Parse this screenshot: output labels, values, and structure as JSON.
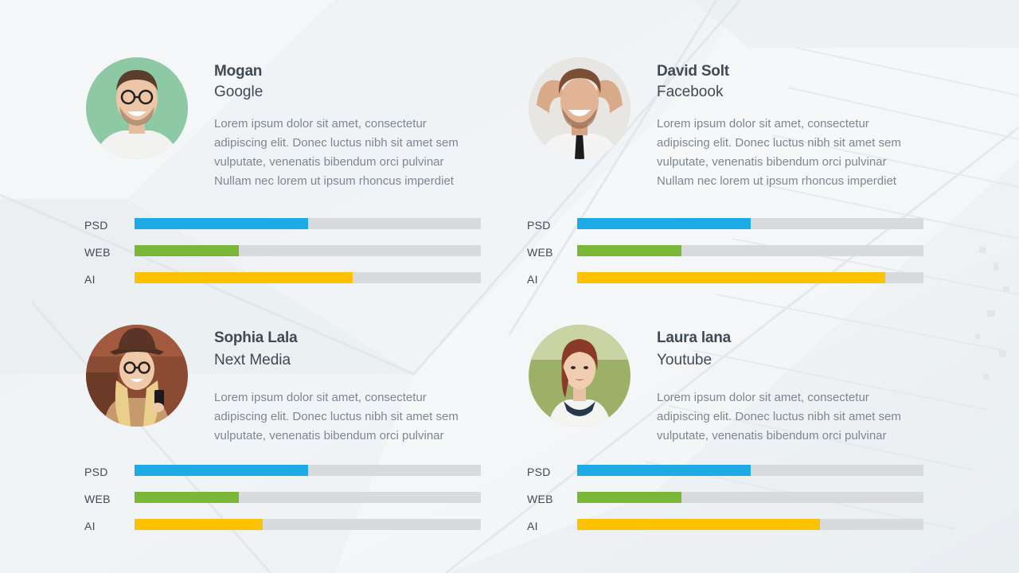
{
  "colors": {
    "psd": "#1eaae4",
    "web": "#7ab637",
    "ai": "#fcc100",
    "track": "#d9dadb"
  },
  "members": [
    {
      "name": "Mogan",
      "company": "Google",
      "description": [
        "Lorem ipsum dolor sit amet, consectetur",
        "adipiscing elit. Donec luctus nibh sit amet sem",
        "vulputate, venenatis bibendum orci pulvinar",
        "Nullam nec lorem ut ipsum rhoncus imperdiet"
      ],
      "skills": [
        {
          "label": "PSD",
          "level": 0.5,
          "color": "#1eaae4"
        },
        {
          "label": "WEB",
          "level": 0.3,
          "color": "#7ab637"
        },
        {
          "label": "AI",
          "level": 0.63,
          "color": "#fcc100"
        }
      ]
    },
    {
      "name": "David Solt",
      "company": "Facebook",
      "description": [
        "Lorem ipsum dolor sit amet, consectetur",
        "adipiscing elit. Donec luctus nibh sit amet sem",
        "vulputate, venenatis bibendum orci pulvinar",
        "Nullam nec lorem ut ipsum rhoncus imperdiet"
      ],
      "skills": [
        {
          "label": "PSD",
          "level": 0.5,
          "color": "#1eaae4"
        },
        {
          "label": "WEB",
          "level": 0.3,
          "color": "#7ab637"
        },
        {
          "label": "AI",
          "level": 0.89,
          "color": "#fcc100"
        }
      ]
    },
    {
      "name": "Sophia Lala",
      "company": "Next Media",
      "description": [
        "Lorem ipsum dolor sit amet, consectetur",
        "adipiscing elit. Donec luctus nibh sit amet sem",
        "vulputate, venenatis bibendum orci pulvinar"
      ],
      "skills": [
        {
          "label": "PSD",
          "level": 0.5,
          "color": "#1eaae4"
        },
        {
          "label": "WEB",
          "level": 0.3,
          "color": "#7ab637"
        },
        {
          "label": "AI",
          "level": 0.37,
          "color": "#fcc100"
        }
      ]
    },
    {
      "name": "Laura lana",
      "company": "Youtube",
      "description": [
        "Lorem ipsum dolor sit amet, consectetur",
        "adipiscing elit. Donec luctus nibh sit amet sem",
        "vulputate, venenatis bibendum orci pulvinar"
      ],
      "skills": [
        {
          "label": "PSD",
          "level": 0.5,
          "color": "#1eaae4"
        },
        {
          "label": "WEB",
          "level": 0.3,
          "color": "#7ab637"
        },
        {
          "label": "AI",
          "level": 0.7,
          "color": "#fcc100"
        }
      ]
    }
  ]
}
